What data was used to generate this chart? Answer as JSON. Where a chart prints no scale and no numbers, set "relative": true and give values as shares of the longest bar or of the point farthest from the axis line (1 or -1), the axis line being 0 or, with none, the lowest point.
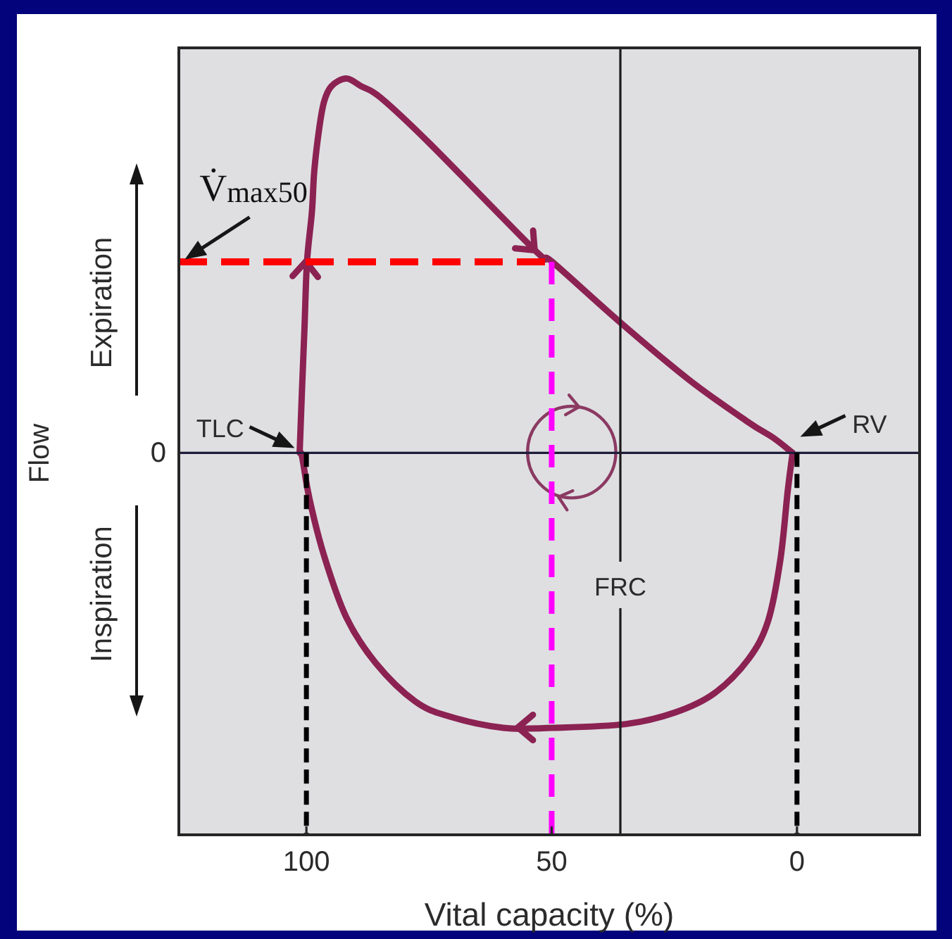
{
  "chart_data": {
    "type": "line",
    "xlabel": "Vital capacity (%)",
    "ylabel": "Flow",
    "relative": true,
    "xlim": [
      126,
      -25
    ],
    "xticks": [
      100,
      50,
      0
    ],
    "series": [
      {
        "color": "#ff0000",
        "line_style": "dashed",
        "x": [
          126,
          50
        ],
        "values": [
          0.5,
          0.5
        ]
      },
      {
        "color": "#ff00ff",
        "line_style": "dashed",
        "x": [
          50,
          50
        ],
        "values": [
          0.5,
          -1
        ]
      },
      {
        "color": "#000000",
        "line_style": "dashed",
        "x": [
          100,
          100
        ],
        "values": [
          0,
          -1
        ]
      },
      {
        "color": "#000000",
        "line_style": "dashed",
        "x": [
          0,
          0
        ],
        "values": [
          0,
          -1
        ]
      }
    ],
    "ref_lines": [
      {
        "axis": "y",
        "value": 0,
        "label": "0",
        "color": "#1e1e3c"
      },
      {
        "axis": "x",
        "value": 36,
        "label": "FRC",
        "color": "#1a1a1a"
      }
    ],
    "annotations": [
      {
        "text": "V̇$_{max50}$",
        "x": 126,
        "y": 0.5
      },
      {
        "text": "TLC",
        "x": 101.5,
        "y": 0
      },
      {
        "text": "RV",
        "x": 1,
        "y": 0
      },
      "Expiration",
      "Inspiration"
    ]
  }
}
